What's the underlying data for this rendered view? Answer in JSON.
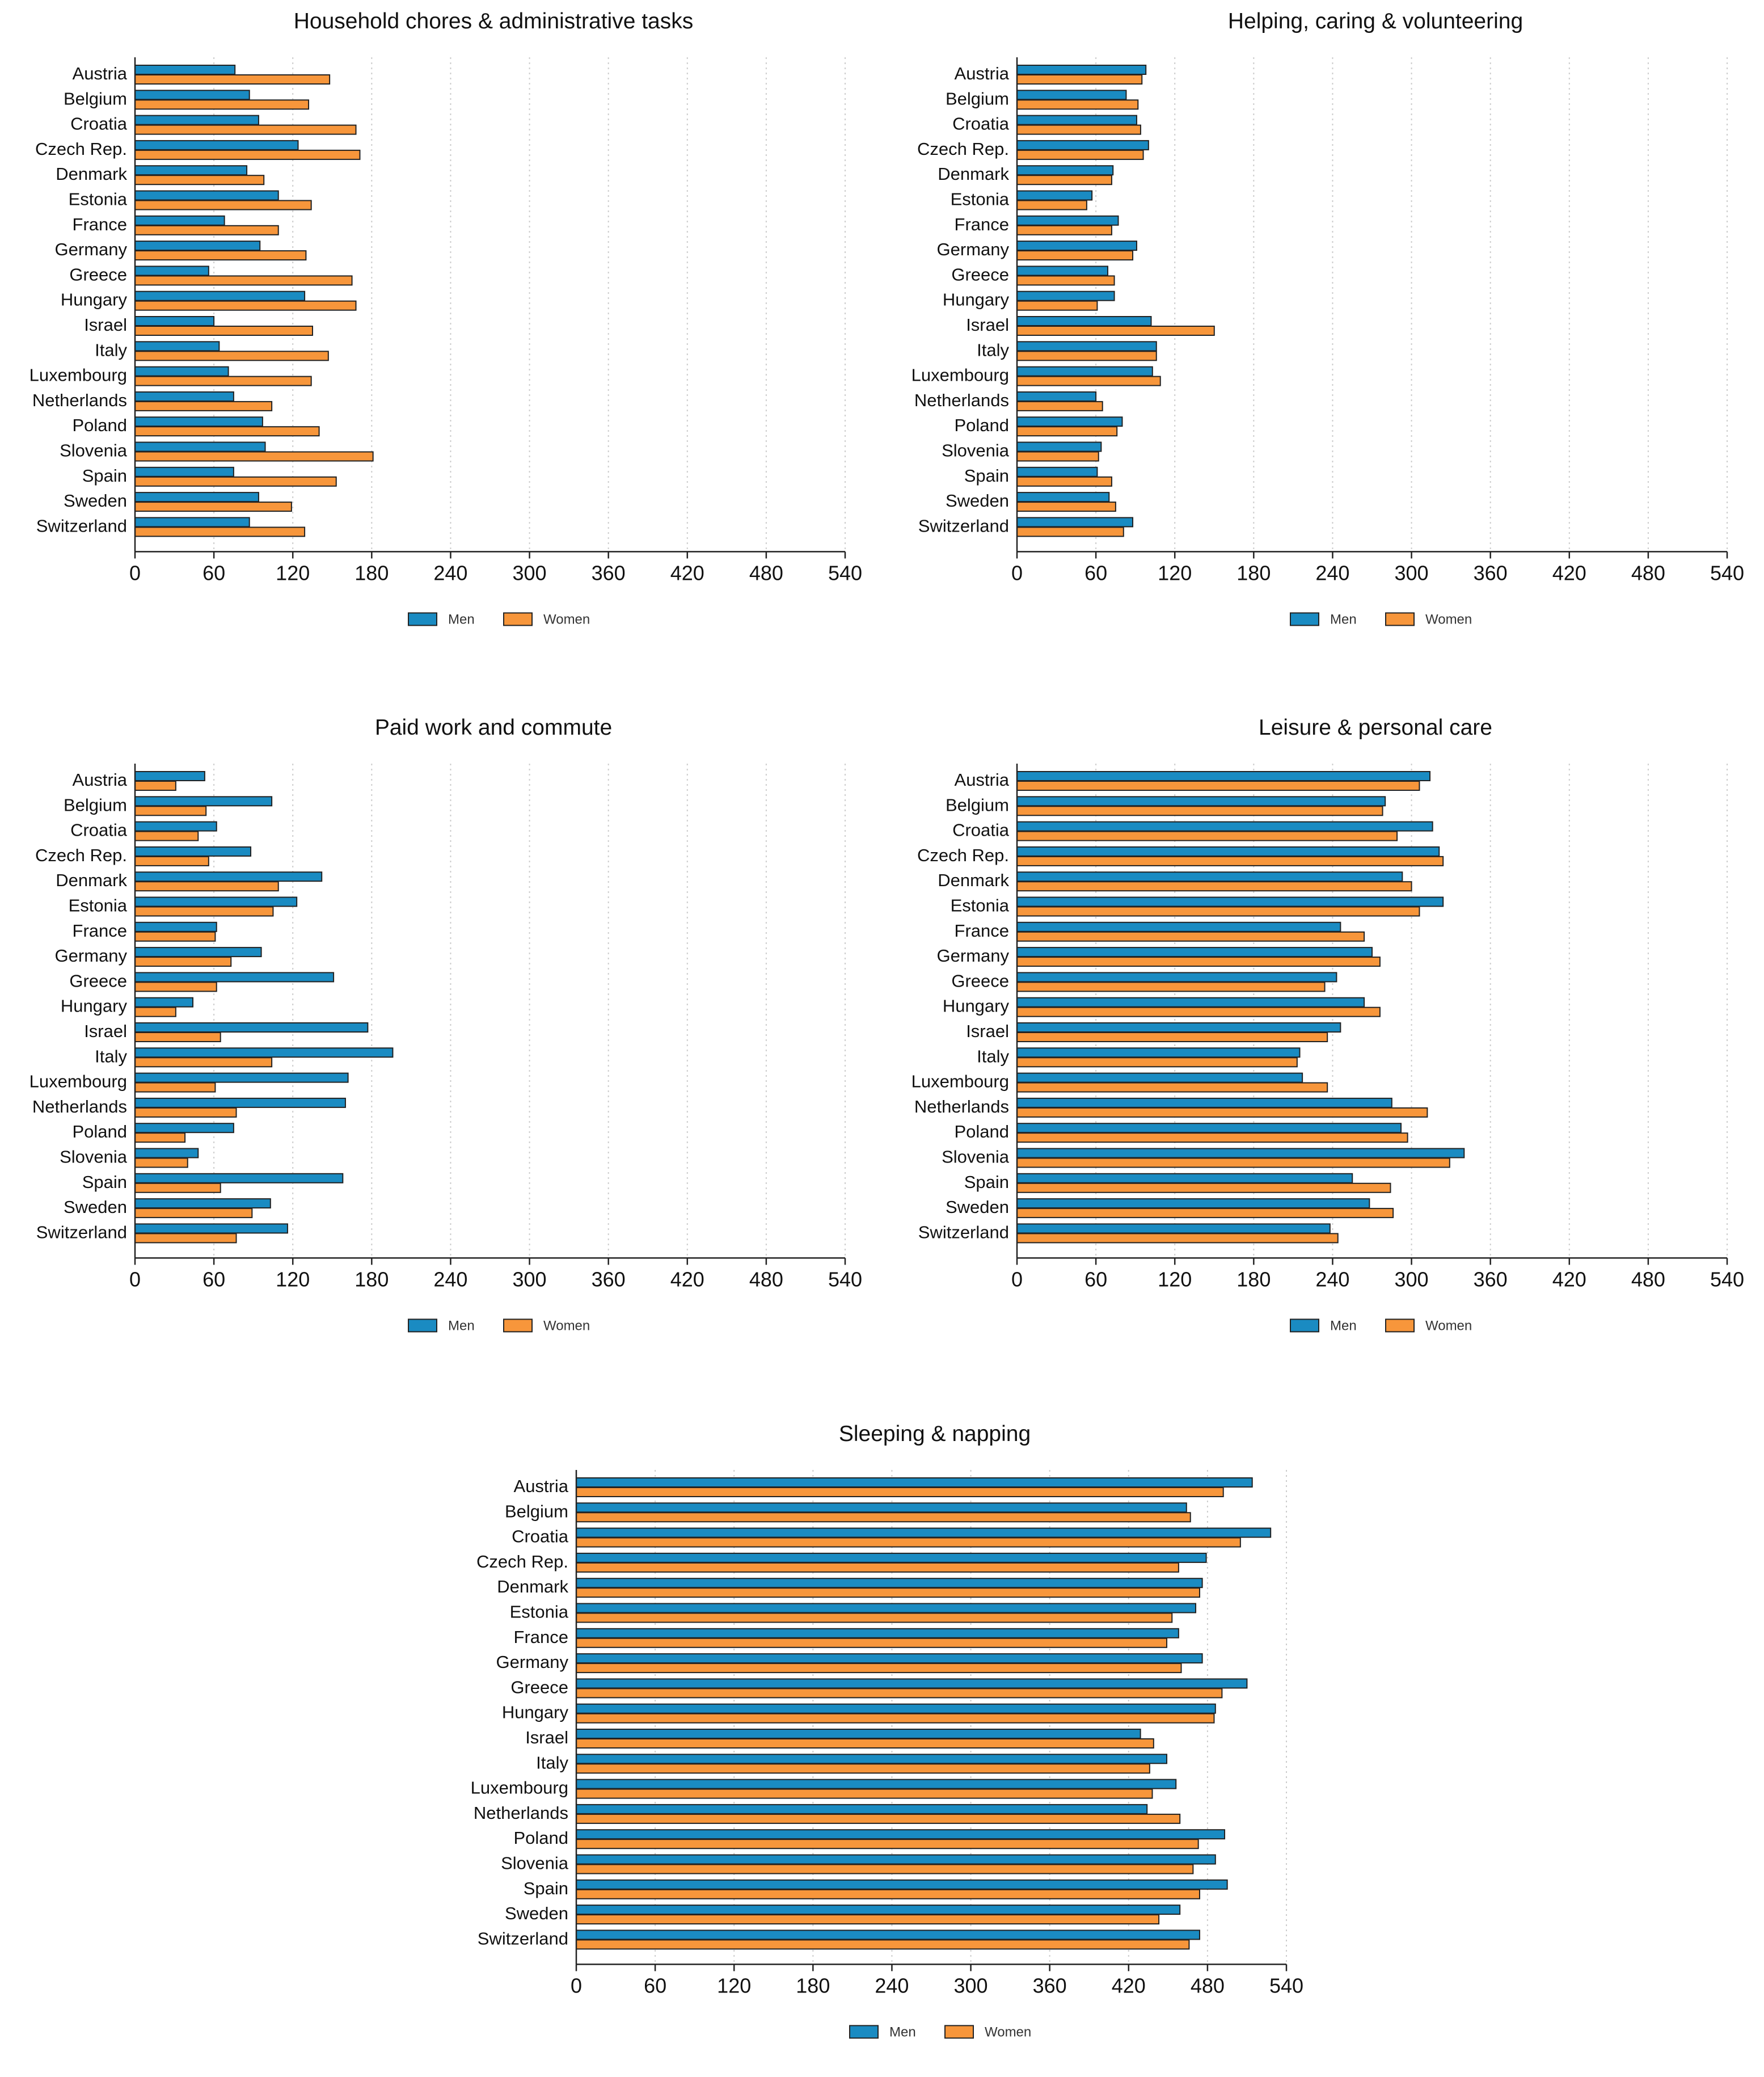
{
  "chart_data": [
    {
      "type": "bar",
      "orientation": "horizontal",
      "title": "Household chores & administrative tasks",
      "categories": [
        "Austria",
        "Belgium",
        "Croatia",
        "Czech Rep.",
        "Denmark",
        "Estonia",
        "France",
        "Germany",
        "Greece",
        "Hungary",
        "Israel",
        "Italy",
        "Luxembourg",
        "Netherlands",
        "Poland",
        "Slovenia",
        "Spain",
        "Sweden",
        "Switzerland"
      ],
      "series": [
        {
          "name": "Men",
          "values": [
            76,
            87,
            94,
            124,
            85,
            109,
            68,
            95,
            56,
            129,
            60,
            64,
            71,
            75,
            97,
            99,
            75,
            94,
            87
          ]
        },
        {
          "name": "Women",
          "values": [
            148,
            132,
            168,
            171,
            98,
            134,
            109,
            130,
            165,
            168,
            135,
            147,
            134,
            104,
            140,
            181,
            153,
            119,
            129
          ]
        }
      ],
      "xticks": [
        0,
        60,
        120,
        180,
        240,
        300,
        360,
        420,
        480,
        540
      ],
      "xlim": [
        0,
        540
      ],
      "xlabel": "",
      "ylabel": "",
      "grid": true,
      "legend_position": "bottom"
    },
    {
      "type": "bar",
      "orientation": "horizontal",
      "title": "Helping, caring & volunteering",
      "categories": [
        "Austria",
        "Belgium",
        "Croatia",
        "Czech Rep.",
        "Denmark",
        "Estonia",
        "France",
        "Germany",
        "Greece",
        "Hungary",
        "Israel",
        "Italy",
        "Luxembourg",
        "Netherlands",
        "Poland",
        "Slovenia",
        "Spain",
        "Sweden",
        "Switzerland"
      ],
      "series": [
        {
          "name": "Men",
          "values": [
            98,
            83,
            91,
            100,
            73,
            57,
            77,
            91,
            69,
            74,
            102,
            106,
            103,
            60,
            80,
            64,
            61,
            70,
            88
          ]
        },
        {
          "name": "Women",
          "values": [
            95,
            92,
            94,
            96,
            72,
            53,
            72,
            88,
            74,
            61,
            150,
            106,
            109,
            65,
            76,
            62,
            72,
            75,
            81
          ]
        }
      ],
      "xticks": [
        0,
        60,
        120,
        180,
        240,
        300,
        360,
        420,
        480,
        540
      ],
      "xlim": [
        0,
        540
      ],
      "xlabel": "",
      "ylabel": "",
      "grid": true,
      "legend_position": "bottom"
    },
    {
      "type": "bar",
      "orientation": "horizontal",
      "title": "Paid work and commute",
      "categories": [
        "Austria",
        "Belgium",
        "Croatia",
        "Czech Rep.",
        "Denmark",
        "Estonia",
        "France",
        "Germany",
        "Greece",
        "Hungary",
        "Israel",
        "Italy",
        "Luxembourg",
        "Netherlands",
        "Poland",
        "Slovenia",
        "Spain",
        "Sweden",
        "Switzerland"
      ],
      "series": [
        {
          "name": "Men",
          "values": [
            53,
            104,
            62,
            88,
            142,
            123,
            62,
            96,
            151,
            44,
            177,
            196,
            162,
            160,
            75,
            48,
            158,
            103,
            116
          ]
        },
        {
          "name": "Women",
          "values": [
            31,
            54,
            48,
            56,
            109,
            105,
            61,
            73,
            62,
            31,
            65,
            104,
            61,
            77,
            38,
            40,
            65,
            89,
            77
          ]
        }
      ],
      "xticks": [
        0,
        60,
        120,
        180,
        240,
        300,
        360,
        420,
        480,
        540
      ],
      "xlim": [
        0,
        540
      ],
      "xlabel": "",
      "ylabel": "",
      "grid": true,
      "legend_position": "bottom"
    },
    {
      "type": "bar",
      "orientation": "horizontal",
      "title": "Leisure & personal care",
      "categories": [
        "Austria",
        "Belgium",
        "Croatia",
        "Czech Rep.",
        "Denmark",
        "Estonia",
        "France",
        "Germany",
        "Greece",
        "Hungary",
        "Israel",
        "Italy",
        "Luxembourg",
        "Netherlands",
        "Poland",
        "Slovenia",
        "Spain",
        "Sweden",
        "Switzerland"
      ],
      "series": [
        {
          "name": "Men",
          "values": [
            314,
            280,
            316,
            321,
            293,
            324,
            246,
            270,
            243,
            264,
            246,
            215,
            217,
            285,
            292,
            340,
            255,
            268,
            238
          ]
        },
        {
          "name": "Women",
          "values": [
            306,
            278,
            289,
            324,
            300,
            306,
            264,
            276,
            234,
            276,
            236,
            213,
            236,
            312,
            297,
            329,
            284,
            286,
            244
          ]
        }
      ],
      "xticks": [
        0,
        60,
        120,
        180,
        240,
        300,
        360,
        420,
        480,
        540
      ],
      "xlim": [
        0,
        540
      ],
      "xlabel": "",
      "ylabel": "",
      "grid": true,
      "legend_position": "bottom"
    },
    {
      "type": "bar",
      "orientation": "horizontal",
      "title": "Sleeping & napping",
      "categories": [
        "Austria",
        "Belgium",
        "Croatia",
        "Czech Rep.",
        "Denmark",
        "Estonia",
        "France",
        "Germany",
        "Greece",
        "Hungary",
        "Israel",
        "Italy",
        "Luxembourg",
        "Netherlands",
        "Poland",
        "Slovenia",
        "Spain",
        "Sweden",
        "Switzerland"
      ],
      "series": [
        {
          "name": "Men",
          "values": [
            514,
            464,
            528,
            479,
            476,
            471,
            458,
            476,
            510,
            486,
            429,
            449,
            456,
            434,
            493,
            486,
            495,
            459,
            474
          ]
        },
        {
          "name": "Women",
          "values": [
            492,
            467,
            505,
            458,
            474,
            453,
            449,
            460,
            491,
            485,
            439,
            436,
            438,
            459,
            473,
            469,
            474,
            443,
            466
          ]
        }
      ],
      "xticks": [
        0,
        60,
        120,
        180,
        240,
        300,
        360,
        420,
        480,
        540
      ],
      "xlim": [
        0,
        540
      ],
      "xlabel": "",
      "ylabel": "",
      "grid": true,
      "legend_position": "bottom"
    }
  ],
  "colors": {
    "Men": "#1a8bc2",
    "Women": "#f7963b"
  }
}
